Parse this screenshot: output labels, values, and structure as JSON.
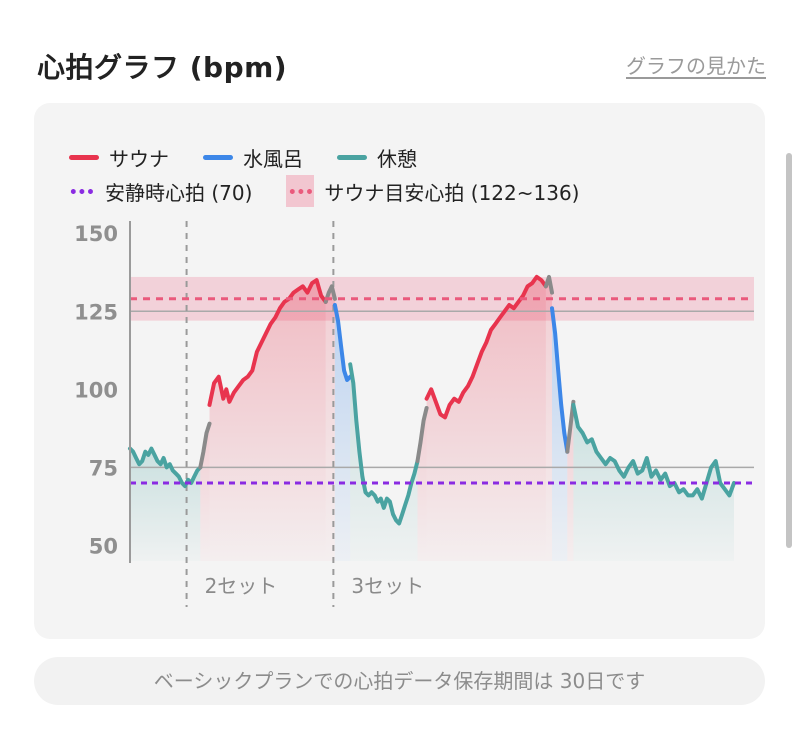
{
  "header": {
    "title": "心拍グラフ (bpm)",
    "help_link": "グラフの見かた"
  },
  "legend": {
    "sauna": "サウナ",
    "cold_bath": "水風呂",
    "rest": "休憩",
    "resting_hr": "安静時心拍 (70)",
    "target_hr": "サウナ目安心拍 (122~136)"
  },
  "colors": {
    "sauna": "#e8344e",
    "cold_bath": "#3d87e8",
    "rest": "#4aa3a1",
    "transition": "#8a8a8a",
    "resting_hr": "#8a2be2",
    "target_hr_line": "#ea5a7c",
    "target_band": "#f2c6d0"
  },
  "chart_data": {
    "type": "line",
    "ylim": [
      45,
      152
    ],
    "yticks": [
      50,
      75,
      100,
      125,
      150
    ],
    "resting_hr": 70,
    "target_band": [
      122,
      136
    ],
    "target_line": 129,
    "set_labels": [
      "2セット",
      "3セット"
    ],
    "series": [
      {
        "name": "休憩",
        "color": "rest",
        "x": [
          0,
          2,
          4,
          6,
          8,
          10,
          12,
          14,
          16,
          18,
          20,
          22,
          24,
          26,
          28,
          30,
          32,
          34,
          36,
          38,
          40,
          42,
          44,
          46
        ],
        "y": [
          81,
          80,
          78,
          76,
          77,
          80,
          79,
          81,
          79,
          77,
          76,
          78,
          75,
          76,
          74,
          73,
          72,
          70,
          69,
          71,
          70,
          72,
          74,
          75
        ]
      },
      {
        "name": "",
        "color": "transition",
        "x": [
          46,
          48,
          50,
          52
        ],
        "y": [
          75,
          80,
          86,
          89
        ]
      },
      {
        "name": "サウナ",
        "color": "sauna",
        "x": [
          52,
          55,
          58,
          61,
          63,
          65,
          68,
          71,
          74,
          77,
          80,
          83,
          86,
          89,
          92,
          95,
          98,
          101,
          104,
          107,
          110,
          113,
          116,
          119,
          122,
          125,
          128
        ],
        "y": [
          95,
          102,
          104,
          97,
          100,
          96,
          99,
          101,
          103,
          104,
          106,
          112,
          115,
          118,
          121,
          123,
          126,
          128,
          129,
          131,
          132,
          133,
          131,
          134,
          135,
          130,
          128
        ]
      },
      {
        "name": "",
        "color": "transition",
        "x": [
          128,
          130,
          132,
          134
        ],
        "y": [
          128,
          131,
          133,
          129
        ]
      },
      {
        "name": "水風呂",
        "color": "cold_bath",
        "x": [
          134,
          136,
          138,
          140,
          142,
          144
        ],
        "y": [
          127,
          122,
          114,
          106,
          103,
          104
        ]
      },
      {
        "name": "休憩",
        "color": "rest",
        "x": [
          144,
          146,
          148,
          150,
          152,
          154,
          156,
          158,
          160,
          162,
          164,
          166,
          168,
          170,
          172,
          174,
          176,
          178,
          180,
          182,
          184,
          186,
          188
        ],
        "y": [
          108,
          102,
          90,
          80,
          72,
          67,
          66,
          67,
          66,
          64,
          65,
          62,
          65,
          64,
          60,
          58,
          57,
          60,
          63,
          66,
          70,
          73,
          77
        ]
      },
      {
        "name": "",
        "color": "transition",
        "x": [
          188,
          190,
          192,
          194
        ],
        "y": [
          77,
          83,
          90,
          94
        ]
      },
      {
        "name": "サウナ",
        "color": "sauna",
        "x": [
          194,
          197,
          200,
          203,
          206,
          209,
          212,
          215,
          218,
          221,
          224,
          227,
          230,
          233,
          236,
          239,
          242,
          245,
          248,
          251,
          254,
          257,
          260,
          263,
          266,
          269,
          272
        ],
        "y": [
          97,
          100,
          96,
          92,
          91,
          95,
          97,
          96,
          99,
          101,
          104,
          108,
          112,
          115,
          119,
          121,
          123,
          125,
          127,
          126,
          128,
          130,
          133,
          134,
          136,
          135,
          133
        ]
      },
      {
        "name": "",
        "color": "transition",
        "x": [
          272,
          274,
          276
        ],
        "y": [
          133,
          136,
          131
        ]
      },
      {
        "name": "水風呂",
        "color": "cold_bath",
        "x": [
          276,
          278,
          280,
          282,
          284,
          286
        ],
        "y": [
          126,
          118,
          106,
          95,
          86,
          80
        ]
      },
      {
        "name": "",
        "color": "transition",
        "x": [
          286,
          288,
          290
        ],
        "y": [
          80,
          88,
          96
        ]
      },
      {
        "name": "休憩",
        "color": "rest",
        "x": [
          290,
          293,
          296,
          299,
          302,
          305,
          308,
          311,
          314,
          317,
          320,
          323,
          326,
          329,
          332,
          335,
          338,
          341,
          344,
          347,
          350,
          353,
          356,
          359,
          362,
          365,
          368,
          371,
          374,
          377,
          380,
          383,
          386,
          389,
          392,
          395
        ],
        "y": [
          95,
          88,
          86,
          83,
          84,
          80,
          78,
          76,
          78,
          77,
          74,
          72,
          75,
          77,
          73,
          74,
          78,
          72,
          74,
          71,
          73,
          69,
          70,
          67,
          68,
          66,
          66,
          68,
          65,
          70,
          75,
          77,
          70,
          68,
          66,
          70
        ]
      }
    ]
  },
  "footer": {
    "note": "ベーシックプランでの心拍データ保存期間は 30日です"
  }
}
